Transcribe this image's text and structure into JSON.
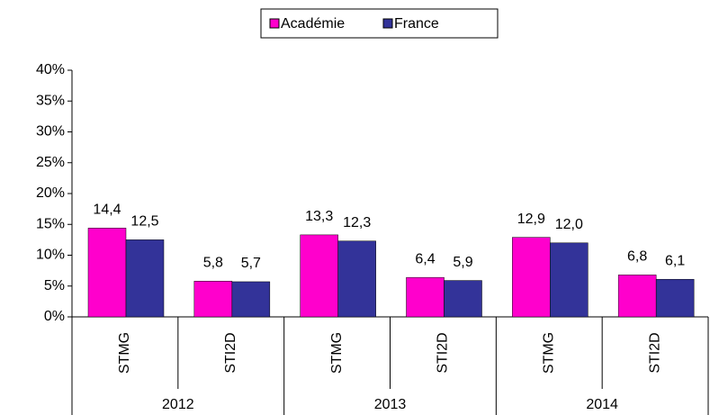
{
  "chart_data": {
    "type": "bar",
    "categories": [
      "STMG",
      "STI2D",
      "STMG",
      "STI2D",
      "STMG",
      "STI2D"
    ],
    "category_groups": [
      "2012",
      "2013",
      "2014"
    ],
    "series": [
      {
        "name": "Académie",
        "color": "#ff00cc",
        "values": [
          14.4,
          5.8,
          13.3,
          6.4,
          12.9,
          6.8
        ],
        "value_labels": [
          "14,4",
          "5,8",
          "13,3",
          "6,4",
          "12,9",
          "6,8"
        ]
      },
      {
        "name": "France",
        "color": "#333399",
        "values": [
          12.5,
          5.7,
          12.3,
          5.9,
          12.0,
          6.1
        ],
        "value_labels": [
          "12,5",
          "5,7",
          "12,3",
          "5,9",
          "12,0",
          "6,1"
        ]
      }
    ],
    "ylim": [
      0,
      40
    ],
    "yticks": [
      {
        "value": 0,
        "label": "0%"
      },
      {
        "value": 5,
        "label": "5%"
      },
      {
        "value": 10,
        "label": "10%"
      },
      {
        "value": 15,
        "label": "15%"
      },
      {
        "value": 20,
        "label": "20%"
      },
      {
        "value": 25,
        "label": "25%"
      },
      {
        "value": 30,
        "label": "30%"
      },
      {
        "value": 35,
        "label": "35%"
      },
      {
        "value": 40,
        "label": "40%"
      }
    ],
    "grid": false,
    "legend": "top"
  }
}
